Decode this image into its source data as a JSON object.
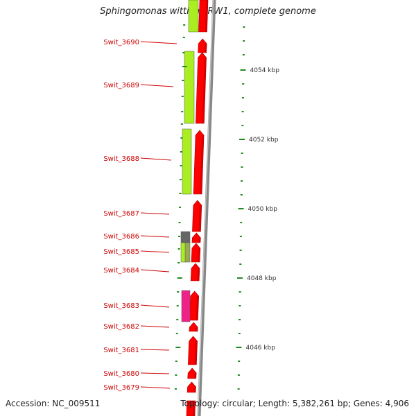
{
  "title": "Sphingomonas wittichii RW1, complete genome",
  "footer": {
    "accession": "Accession: NC_009511",
    "topology": "Topology: circular; Length: 5,382,261 bp; Genes: 4,906"
  },
  "colors": {
    "gene_red": "#ff0000",
    "gene_green": "#aaee22",
    "gene_gray": "#666666",
    "gene_olive": "#99aa55",
    "gene_pink": "#ee2288",
    "label_red": "#cc0000",
    "tick_green": "#228b22",
    "backbone": "#888888"
  },
  "genome_map": {
    "kbp_labels": [
      "4054 kbp",
      "4052 kbp",
      "4050 kbp",
      "4048 kbp",
      "4046 kbp"
    ],
    "genes": [
      {
        "label": "Swit_3690"
      },
      {
        "label": "Swit_3689"
      },
      {
        "label": "Swit_3688"
      },
      {
        "label": "Swit_3687"
      },
      {
        "label": "Swit_3686"
      },
      {
        "label": "Swit_3685"
      },
      {
        "label": "Swit_3684"
      },
      {
        "label": "Swit_3683"
      },
      {
        "label": "Swit_3682"
      },
      {
        "label": "Swit_3681"
      },
      {
        "label": "Swit_3680"
      },
      {
        "label": "Swit_3679"
      }
    ]
  }
}
